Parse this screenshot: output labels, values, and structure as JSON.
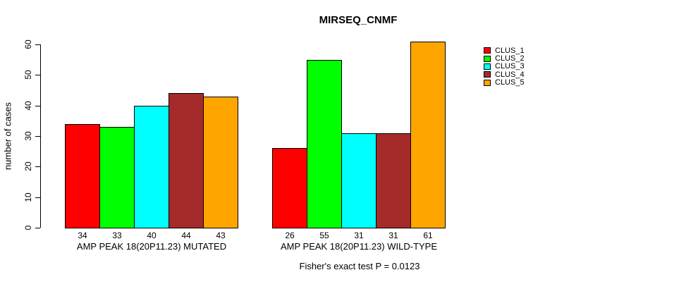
{
  "chart_data": {
    "type": "bar",
    "title": "MIRSEQ_CNMF",
    "ylabel": "number of cases",
    "xlabel": "",
    "categories": [
      "AMP PEAK 18(20P11.23) MUTATED",
      "AMP PEAK 18(20P11.23) WILD-TYPE"
    ],
    "series": [
      {
        "name": "CLUS_1",
        "color": "#FF0000",
        "values": [
          34,
          26
        ]
      },
      {
        "name": "CLUS_2",
        "color": "#00FF00",
        "values": [
          33,
          55
        ]
      },
      {
        "name": "CLUS_3",
        "color": "#00FFFF",
        "values": [
          40,
          31
        ]
      },
      {
        "name": "CLUS_4",
        "color": "#A52A2A",
        "values": [
          44,
          31
        ]
      },
      {
        "name": "CLUS_5",
        "color": "#FFA500",
        "values": [
          43,
          61
        ]
      }
    ],
    "yticks": [
      0,
      10,
      20,
      30,
      40,
      50,
      60
    ],
    "ylim": [
      0,
      61
    ],
    "grid": false,
    "bar_value_labels": true,
    "legend_position": "right",
    "annotation": "Fisher's exact test P = 0.0123"
  }
}
